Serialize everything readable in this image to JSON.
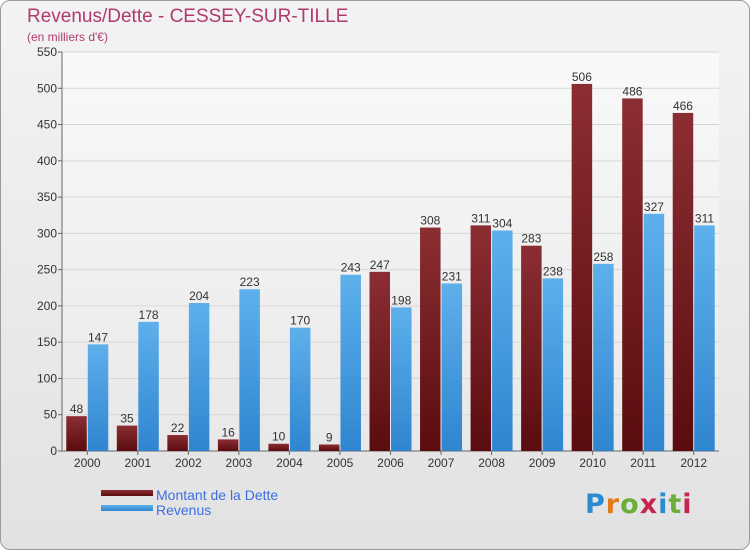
{
  "header": {
    "title": "Revenus/Dette - CESSEY-SUR-TILLE",
    "subtitle": "(en milliers d'€)"
  },
  "legend": {
    "dette_label": "Montant de la Dette",
    "revenus_label": "Revenus"
  },
  "logo": {
    "text": "Proxiti"
  },
  "colors": {
    "dette_top": "#8b2e33",
    "dette_bottom": "#5a0c0f",
    "revenus_top": "#5eb0ec",
    "revenus_bottom": "#2f85cf",
    "title": "#b03a6e",
    "legend_text": "#3d6fe0"
  },
  "chart_data": {
    "type": "bar",
    "title": "Revenus/Dette - CESSEY-SUR-TILLE",
    "ylabel": "(en milliers d'€)",
    "xlabel": "",
    "categories": [
      "2000",
      "2001",
      "2002",
      "2003",
      "2004",
      "2005",
      "2006",
      "2007",
      "2008",
      "2009",
      "2010",
      "2011",
      "2012"
    ],
    "series": [
      {
        "name": "Montant de la Dette",
        "values": [
          48,
          35,
          22,
          16,
          10,
          9,
          247,
          308,
          311,
          283,
          506,
          486,
          466
        ]
      },
      {
        "name": "Revenus",
        "values": [
          147,
          178,
          204,
          223,
          170,
          243,
          198,
          231,
          304,
          238,
          258,
          327,
          311
        ]
      }
    ],
    "ylim": [
      0,
      550
    ],
    "yticks": [
      0,
      50,
      100,
      150,
      200,
      250,
      300,
      350,
      400,
      450,
      500,
      550
    ],
    "grid": true,
    "legend_position": "bottom-left"
  }
}
